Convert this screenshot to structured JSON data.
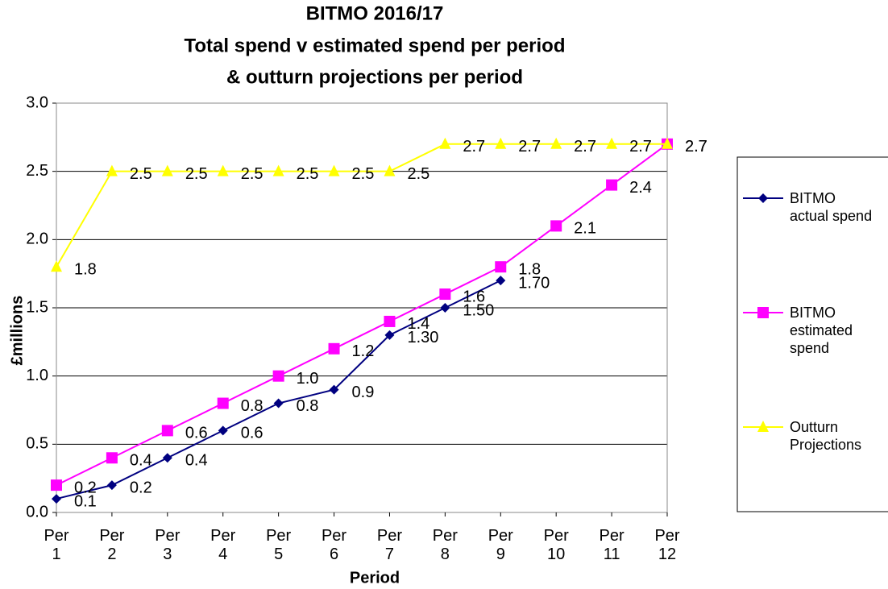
{
  "chart_data": {
    "type": "line",
    "title": "BITMO 2016/17",
    "subtitle": [
      "Total spend v  estimated spend per period",
      "& outturn projections  per period"
    ],
    "x_label": "Period",
    "y_label": "£millions",
    "categories": [
      "Per 1",
      "Per 2",
      "Per 3",
      "Per 4",
      "Per 5",
      "Per 6",
      "Per 7",
      "Per 8",
      "Per 9",
      "Per 10",
      "Per 11",
      "Per 12"
    ],
    "series": [
      {
        "name": "BITMO actual spend",
        "color": "#000080",
        "marker": "diamond",
        "values": [
          0.1,
          0.2,
          0.4,
          0.6,
          0.8,
          0.9,
          1.3,
          1.5,
          1.7,
          null,
          null,
          null
        ],
        "value_labels": [
          "0.1",
          "0.2",
          "0.4",
          "0.6",
          "0.8",
          "0.9",
          "1.30",
          "1.50",
          "1.70",
          null,
          null,
          null
        ]
      },
      {
        "name": "BITMO estimated spend",
        "color": "#ff00ff",
        "marker": "square",
        "values": [
          0.2,
          0.4,
          0.6,
          0.8,
          1.0,
          1.2,
          1.4,
          1.6,
          1.8,
          2.1,
          2.4,
          2.7
        ],
        "value_labels": [
          "0.2",
          "0.4",
          "0.6",
          "0.8",
          "1.0",
          "1.2",
          "1.4",
          "1.6",
          "1.8",
          "2.1",
          "2.4",
          "2.7"
        ]
      },
      {
        "name": "Outturn Projections",
        "color": "#ffff00",
        "marker": "triangle",
        "values": [
          1.8,
          2.5,
          2.5,
          2.5,
          2.5,
          2.5,
          2.5,
          2.7,
          2.7,
          2.7,
          2.7,
          2.7
        ],
        "value_labels": [
          "1.8",
          "2.5",
          "2.5",
          "2.5",
          "2.5",
          "2.5",
          "2.5",
          "2.7",
          "2.7",
          "2.7",
          "2.7",
          "2.7"
        ]
      }
    ],
    "ylim": [
      0,
      3
    ],
    "yticks": [
      {
        "value": 0,
        "label": "0.0"
      },
      0.5,
      {
        "value": 1,
        "label": "1.0"
      },
      1.5,
      {
        "value": 2,
        "label": "2.0"
      },
      2.5,
      {
        "value": 3,
        "label": "3.0"
      }
    ],
    "grid": true,
    "legend": "right"
  }
}
